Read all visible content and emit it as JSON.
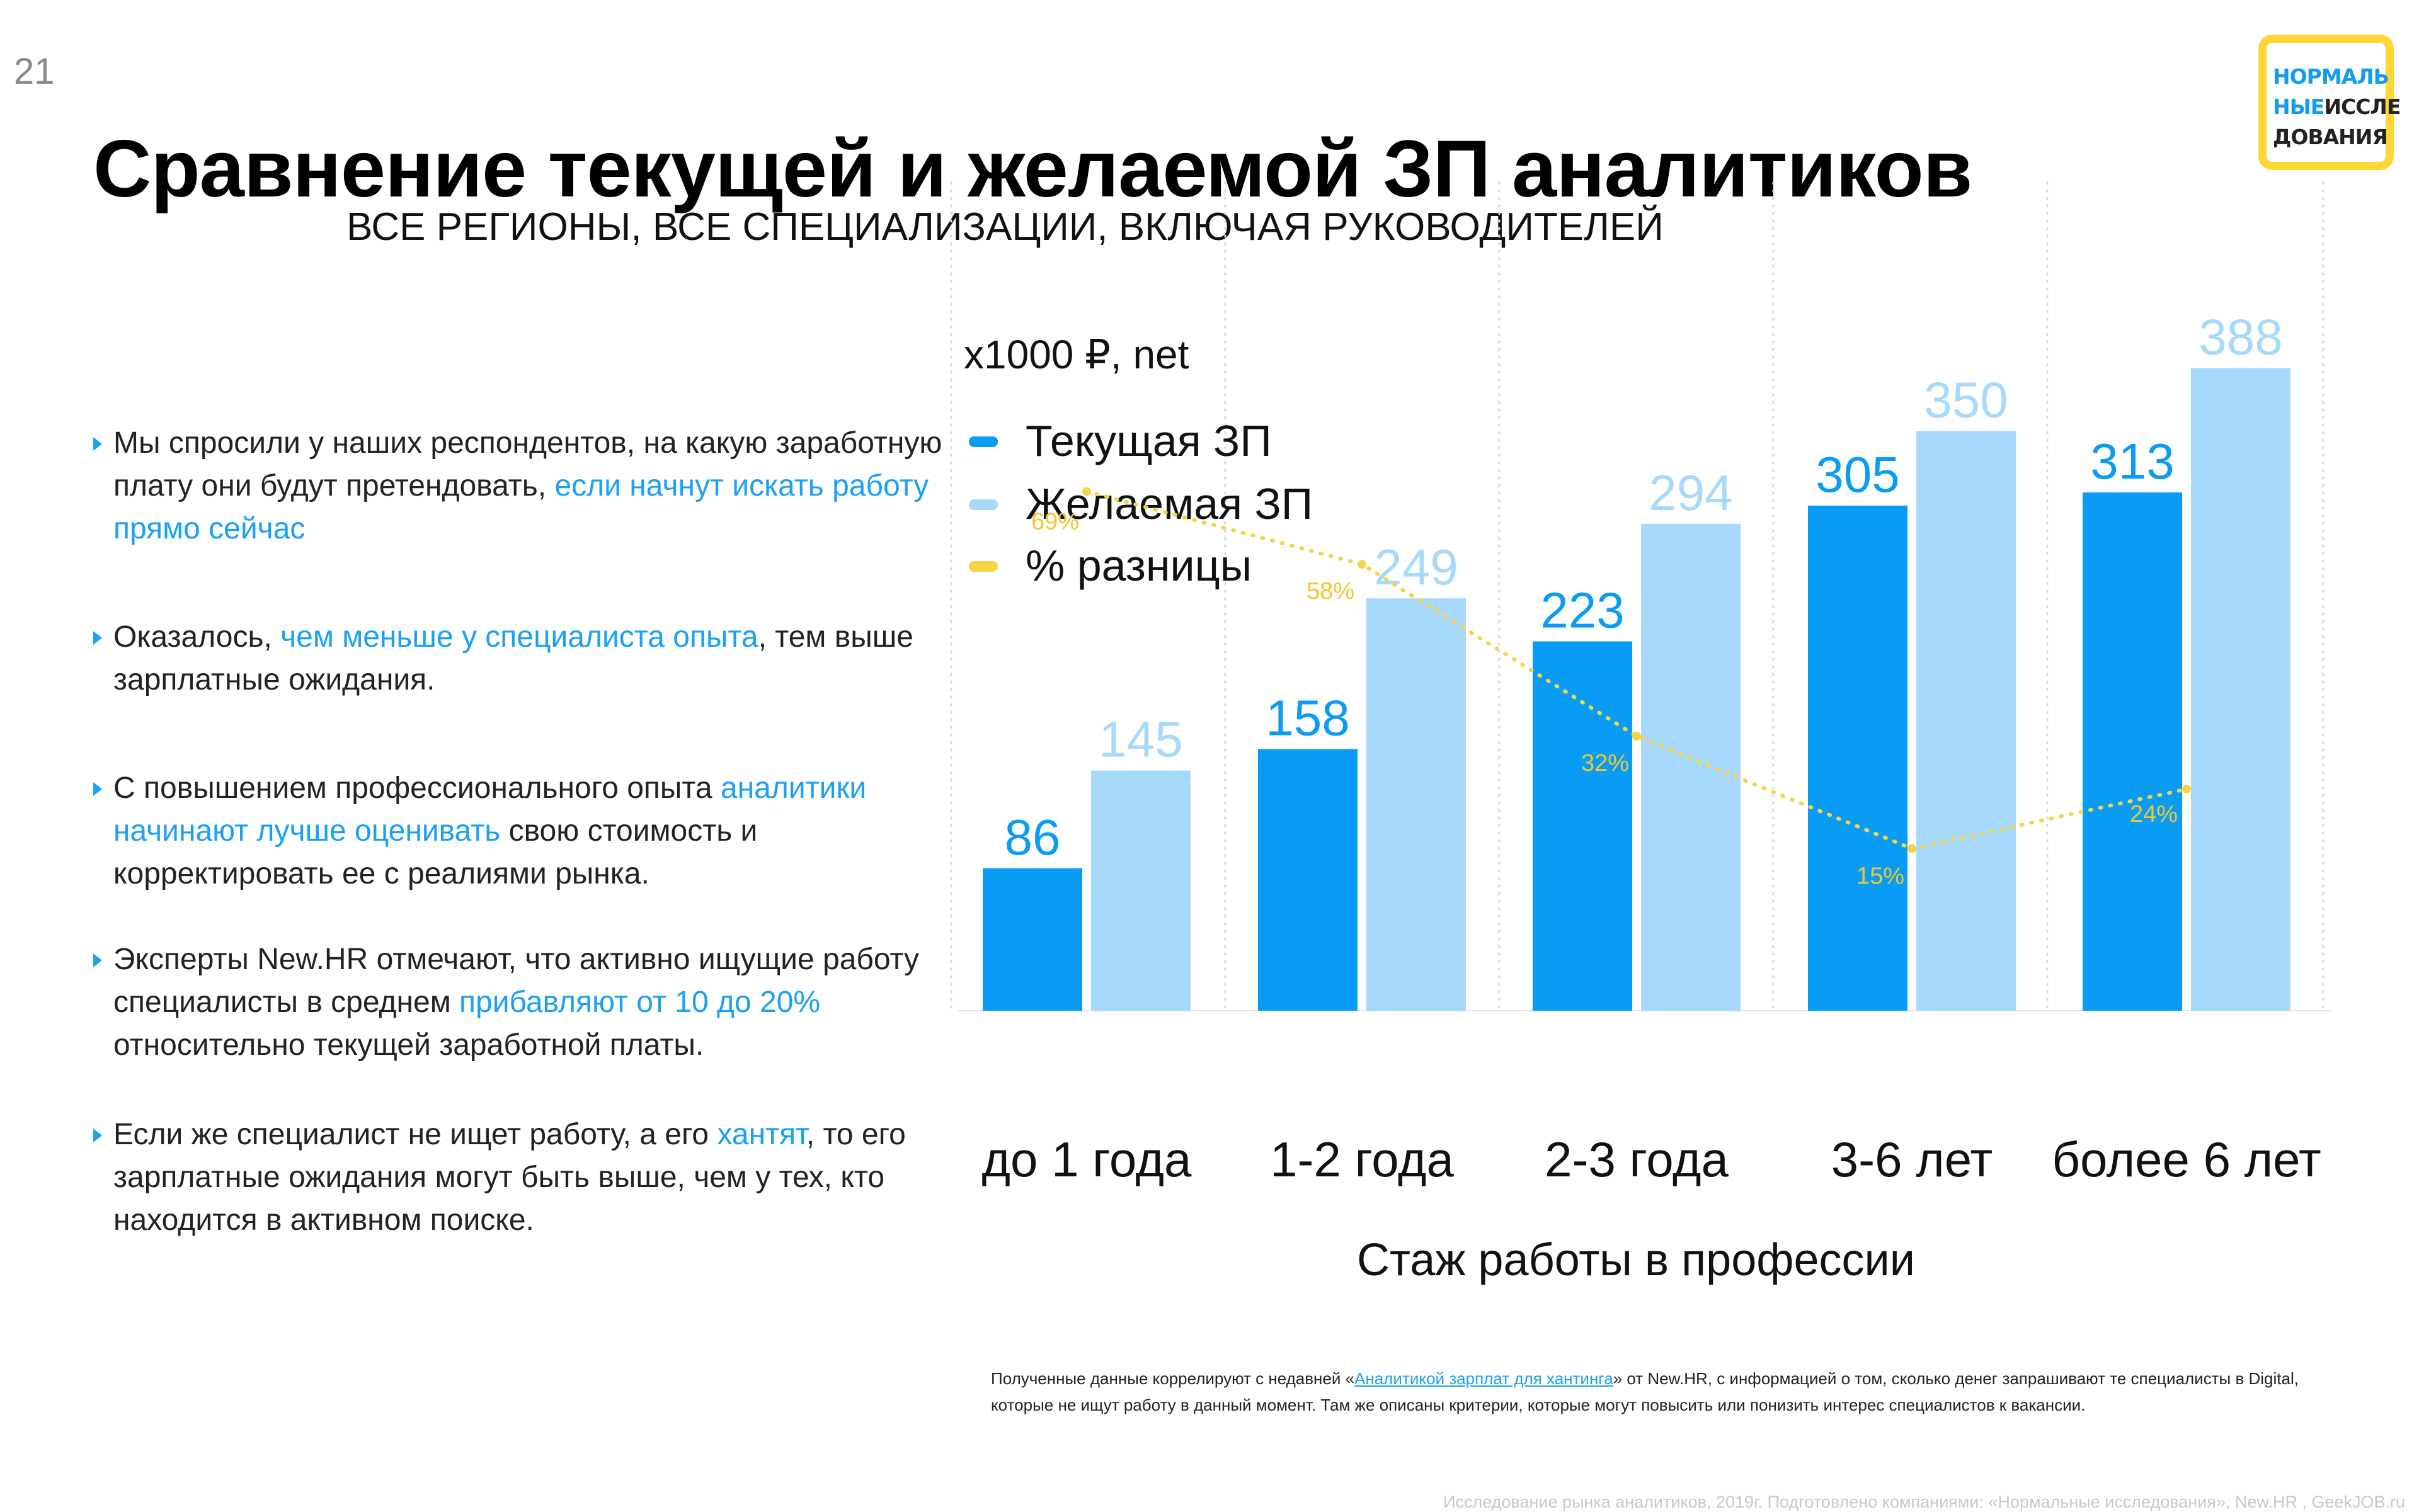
{
  "page_number": "21",
  "title": "Сравнение текущей и желаемой ЗП аналитиков",
  "subtitle": "ВСЕ РЕГИОНЫ, ВСЕ СПЕЦИАЛИЗАЦИИ, ВКЛЮЧАЯ РУКОВОДИТЕЛЕЙ",
  "logo": {
    "line1": "НОРМАЛЬ",
    "line2a": "НЫЕ",
    "line2b": "ИССЛЕ",
    "line3": "ДОВАНИЯ"
  },
  "bullets": [
    {
      "parts": [
        {
          "t": "Мы спросили у наших респондентов, на какую заработную плату они будут претендовать, ",
          "hl": false
        },
        {
          "t": "если начнут искать работу прямо сейчас",
          "hl": true
        }
      ]
    },
    {
      "parts": [
        {
          "t": "Оказалось, ",
          "hl": false
        },
        {
          "t": "чем меньше у специалиста опыта",
          "hl": true
        },
        {
          "t": ", тем выше зарплатные ожидания.",
          "hl": false
        }
      ]
    },
    {
      "parts": [
        {
          "t": "С повышением профессионального опыта ",
          "hl": false
        },
        {
          "t": "аналитики начинают лучше оценивать",
          "hl": true
        },
        {
          "t": " свою стоимость и корректировать ее с реалиями рынка.",
          "hl": false
        }
      ]
    },
    {
      "parts": [
        {
          "t": "Эксперты New.HR отмечают, что активно ищущие работу специалисты в среднем ",
          "hl": false
        },
        {
          "t": "прибавляют от 10 до 20%",
          "hl": true
        },
        {
          "t": " относительно текущей заработной платы.",
          "hl": false
        }
      ]
    },
    {
      "parts": [
        {
          "t": "Если же специалист не ищет работу, а его ",
          "hl": false
        },
        {
          "t": "хантят",
          "hl": true
        },
        {
          "t": ", то его зарплатные ожидания могут быть выше, чем у тех, кто находится в активном поиске.",
          "hl": false
        }
      ]
    }
  ],
  "chart_data": {
    "type": "bar",
    "unit_label": "x1000 ₽, net",
    "xlabel": "Стаж работы в профессии",
    "categories": [
      "до 1 года",
      "1-2 года",
      "2-3 года",
      "3-6 лет",
      "более 6 лет"
    ],
    "series": [
      {
        "name": "Текущая ЗП",
        "values": [
          86,
          158,
          223,
          305,
          313
        ],
        "color": "#0a9cf5"
      },
      {
        "name": "Желаемая ЗП",
        "values": [
          145,
          249,
          294,
          350,
          388
        ],
        "color": "#a6d9fb"
      }
    ],
    "line_series": {
      "name": "% разницы",
      "type": "line",
      "values": [
        69,
        58,
        32,
        15,
        24
      ],
      "labels": [
        "69%",
        "58%",
        "32%",
        "15%",
        "24%"
      ],
      "color": "#f5d547",
      "style": "dotted"
    },
    "legend_position": "top-left",
    "grid": "vertical dotted"
  },
  "footnote": {
    "before": "Полученные данные коррелируют с недавней «",
    "link": "Аналитикой зарплат для хантинга",
    "after": "» от New.HR, с информацией о том, сколько денег запрашивают те специалисты в Digital, которые не ищут работу в данный момент. Там же описаны критерии, которые могут повысить или понизить интерес специалистов к вакансии."
  },
  "credit": "Исследование рынка аналитиков, 2019г. Подготовлено компаниями: «Нормальные исследования», New.HR , GeekJOB.ru"
}
